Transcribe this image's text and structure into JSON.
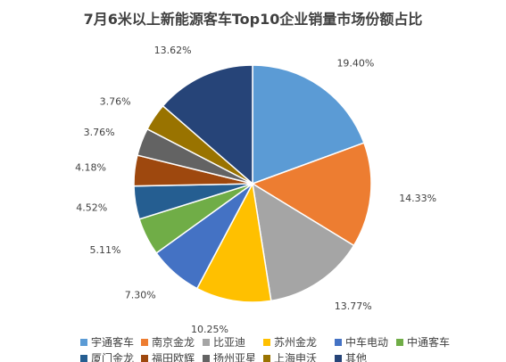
{
  "chart_data": {
    "type": "pie",
    "title": "7月6米以上新能源客车Top10企业销量市场份额占比",
    "categories": [
      "宇通客车",
      "南京金龙",
      "比亚迪",
      "苏州金龙",
      "中车电动",
      "中通客车",
      "厦门金龙",
      "福田欧辉",
      "扬州亚星",
      "上海申沃",
      "其他"
    ],
    "values": [
      19.4,
      14.33,
      13.77,
      10.25,
      7.3,
      5.11,
      4.52,
      4.18,
      3.76,
      3.76,
      13.62
    ],
    "labels": [
      "19.40%",
      "14.33%",
      "13.77%",
      "10.25%",
      "7.30%",
      "5.11%",
      "4.52%",
      "4.18%",
      "3.76%",
      "3.76%",
      "13.62%"
    ],
    "colors": [
      "#5B9BD5",
      "#ED7D31",
      "#A5A5A5",
      "#FFC000",
      "#4472C4",
      "#70AD47",
      "#255E91",
      "#9E480E",
      "#636363",
      "#997300",
      "#264478"
    ],
    "legend_position": "bottom"
  }
}
